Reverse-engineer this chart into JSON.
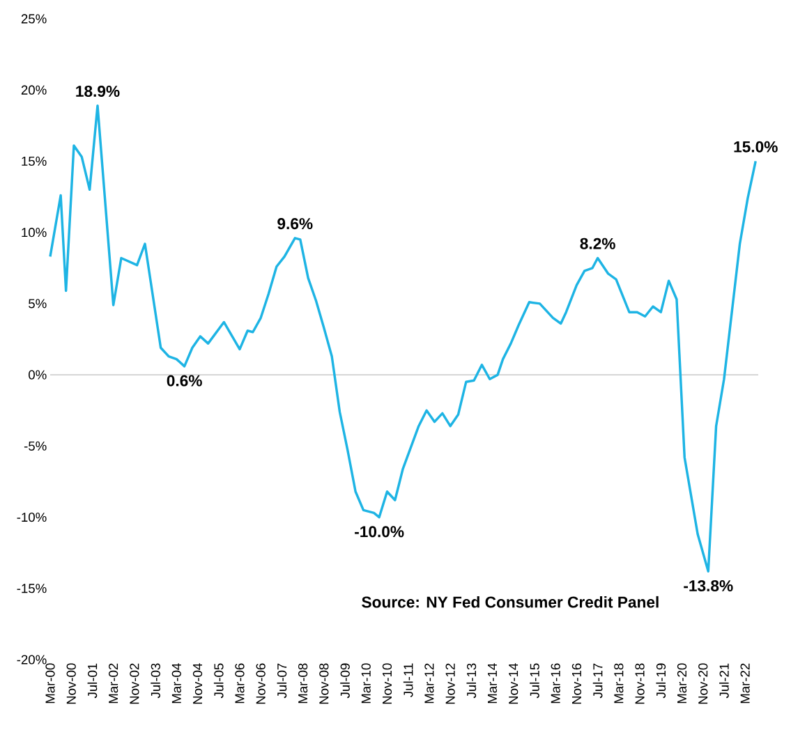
{
  "chart_data": {
    "type": "line",
    "x": [
      "2000-03",
      "2000-07",
      "2000-09",
      "2000-12",
      "2001-03",
      "2001-06",
      "2001-09",
      "2002-03",
      "2002-06",
      "2002-12",
      "2003-03",
      "2003-09",
      "2003-12",
      "2004-03",
      "2004-06",
      "2004-09",
      "2004-12",
      "2005-03",
      "2005-09",
      "2006-03",
      "2006-06",
      "2006-08",
      "2006-11",
      "2007-02",
      "2007-05",
      "2007-08",
      "2007-12",
      "2008-02",
      "2008-05",
      "2008-08",
      "2008-11",
      "2009-02",
      "2009-05",
      "2009-08",
      "2009-11",
      "2010-02",
      "2010-06",
      "2010-08",
      "2010-11",
      "2011-02",
      "2011-05",
      "2011-11",
      "2012-02",
      "2012-05",
      "2012-08",
      "2012-11",
      "2013-02",
      "2013-05",
      "2013-08",
      "2013-11",
      "2014-02",
      "2014-05",
      "2014-07",
      "2014-10",
      "2015-01",
      "2015-05",
      "2015-09",
      "2016-02",
      "2016-05",
      "2016-07",
      "2016-11",
      "2017-02",
      "2017-05",
      "2017-07",
      "2017-11",
      "2018-02",
      "2018-07",
      "2018-10",
      "2019-01",
      "2019-04",
      "2019-07",
      "2019-10",
      "2020-01",
      "2020-04",
      "2020-09",
      "2021-01",
      "2021-04",
      "2021-07",
      "2022-01",
      "2022-04",
      "2022-07"
    ],
    "series": [
      {
        "color": "#1eb4e4",
        "values": [
          8.3,
          12.6,
          5.9,
          16.1,
          15.3,
          13.0,
          18.9,
          4.9,
          8.2,
          7.7,
          9.2,
          1.9,
          1.3,
          1.1,
          0.6,
          1.9,
          2.7,
          2.2,
          3.7,
          1.8,
          3.1,
          3.0,
          4.0,
          5.7,
          7.6,
          8.3,
          9.6,
          9.5,
          6.8,
          5.2,
          3.3,
          1.3,
          -2.6,
          -5.3,
          -8.2,
          -9.5,
          -9.7,
          -10.0,
          -8.2,
          -8.8,
          -6.6,
          -3.6,
          -2.5,
          -3.3,
          -2.7,
          -3.6,
          -2.8,
          -0.5,
          -0.4,
          0.7,
          -0.3,
          0.0,
          1.1,
          2.2,
          3.5,
          5.1,
          5.0,
          4.0,
          3.6,
          4.4,
          6.3,
          7.3,
          7.5,
          8.2,
          7.1,
          6.7,
          4.4,
          4.4,
          4.1,
          4.8,
          4.4,
          6.6,
          5.3,
          -5.8,
          -11.2,
          -13.8,
          -3.6,
          -0.3,
          9.2,
          12.4,
          15.0
        ]
      }
    ],
    "xlim": [
      "2000-03",
      "2022-08"
    ],
    "xticks": [
      {
        "value": "2000-03",
        "label": "Mar-00"
      },
      {
        "value": "2000-11",
        "label": "Nov-00"
      },
      {
        "value": "2001-07",
        "label": "Jul-01"
      },
      {
        "value": "2002-03",
        "label": "Mar-02"
      },
      {
        "value": "2002-11",
        "label": "Nov-02"
      },
      {
        "value": "2003-07",
        "label": "Jul-03"
      },
      {
        "value": "2004-03",
        "label": "Mar-04"
      },
      {
        "value": "2004-11",
        "label": "Nov-04"
      },
      {
        "value": "2005-07",
        "label": "Jul-05"
      },
      {
        "value": "2006-03",
        "label": "Mar-06"
      },
      {
        "value": "2006-11",
        "label": "Nov-06"
      },
      {
        "value": "2007-07",
        "label": "Jul-07"
      },
      {
        "value": "2008-03",
        "label": "Mar-08"
      },
      {
        "value": "2008-11",
        "label": "Nov-08"
      },
      {
        "value": "2009-07",
        "label": "Jul-09"
      },
      {
        "value": "2010-03",
        "label": "Mar-10"
      },
      {
        "value": "2010-11",
        "label": "Nov-10"
      },
      {
        "value": "2011-07",
        "label": "Jul-11"
      },
      {
        "value": "2012-03",
        "label": "Mar-12"
      },
      {
        "value": "2012-11",
        "label": "Nov-12"
      },
      {
        "value": "2013-07",
        "label": "Jul-13"
      },
      {
        "value": "2014-03",
        "label": "Mar-14"
      },
      {
        "value": "2014-11",
        "label": "Nov-14"
      },
      {
        "value": "2015-07",
        "label": "Jul-15"
      },
      {
        "value": "2016-03",
        "label": "Mar-16"
      },
      {
        "value": "2016-11",
        "label": "Nov-16"
      },
      {
        "value": "2017-07",
        "label": "Jul-17"
      },
      {
        "value": "2018-03",
        "label": "Mar-18"
      },
      {
        "value": "2018-11",
        "label": "Nov-18"
      },
      {
        "value": "2019-07",
        "label": "Jul-19"
      },
      {
        "value": "2020-03",
        "label": "Mar-20"
      },
      {
        "value": "2020-11",
        "label": "Nov-20"
      },
      {
        "value": "2021-07",
        "label": "Jul-21"
      },
      {
        "value": "2022-03",
        "label": "Mar-22"
      }
    ],
    "ylim": [
      -20,
      25
    ],
    "yticks": [
      {
        "value": -20,
        "label": "-20%"
      },
      {
        "value": -15,
        "label": "-15%"
      },
      {
        "value": -10,
        "label": "-10%"
      },
      {
        "value": -5,
        "label": "-5%"
      },
      {
        "value": 0,
        "label": "0%"
      },
      {
        "value": 5,
        "label": "5%"
      },
      {
        "value": 10,
        "label": "10%"
      },
      {
        "value": 15,
        "label": "15%"
      },
      {
        "value": 20,
        "label": "20%"
      },
      {
        "value": 25,
        "label": "25%"
      }
    ],
    "ref_lines": [
      {
        "axis": "y",
        "value": 0,
        "color": "#d0d0d0"
      }
    ],
    "annotations": [
      {
        "text": "18.9%",
        "x": "2001-09",
        "y": 18.9
      },
      {
        "text": "0.6%",
        "x": "2004-06",
        "y": 0.6
      },
      {
        "text": "9.6%",
        "x": "2007-12",
        "y": 9.6
      },
      {
        "text": "-10.0%",
        "x": "2010-08",
        "y": -10.0
      },
      {
        "text": "8.2%",
        "x": "2017-07",
        "y": 8.2
      },
      {
        "text": "-13.8%",
        "x": "2021-01",
        "y": -13.8
      },
      {
        "text": "15.0%",
        "x": "2022-07",
        "y": 15.0
      },
      "Source: NY Fed Consumer Credit Panel"
    ],
    "grid": false,
    "marker": "none",
    "line_style": "solid"
  }
}
